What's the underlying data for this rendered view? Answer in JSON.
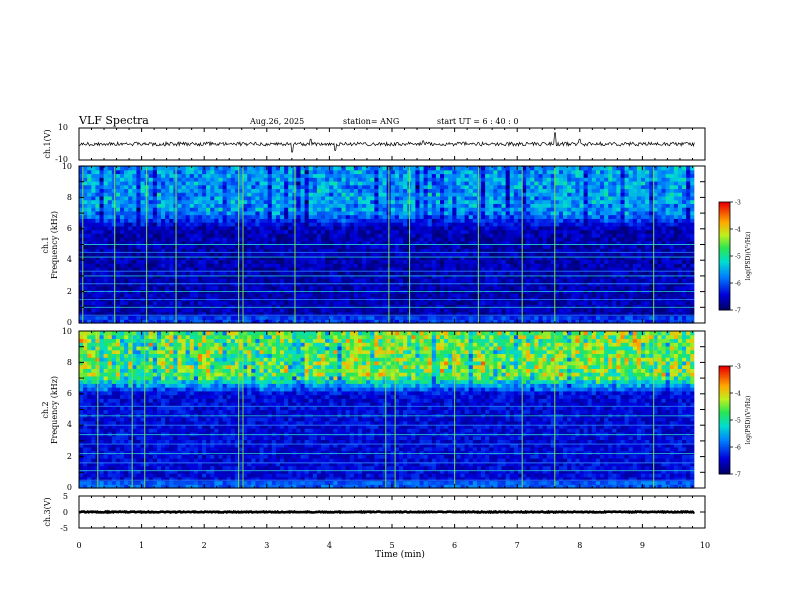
{
  "header": {
    "title": "VLF Spectra",
    "date": "Aug.26, 2025",
    "station": "station= ANG",
    "start": "start  UT =   6 : 40 : 0"
  },
  "chart_data": [
    {
      "type": "line",
      "name": "ch1-waveform",
      "ylabel": "ch.1(V)",
      "ylim": [
        -10,
        10
      ],
      "yticks": [
        "10",
        "-10"
      ],
      "baseline_v": 0,
      "noise_amplitude_v": 1.2,
      "spikes": [
        {
          "t": 3.4,
          "v": -5
        },
        {
          "t": 3.7,
          "v": 3
        },
        {
          "t": 4.1,
          "v": -4
        },
        {
          "t": 5.5,
          "v": 2
        },
        {
          "t": 7.6,
          "v": 7
        },
        {
          "t": 8.0,
          "v": 3
        }
      ]
    },
    {
      "type": "heatmap",
      "name": "ch1-spectrogram",
      "ylabel_top": "ch.1",
      "ylabel": "Frequency (kHz)",
      "ylim": [
        0,
        10
      ],
      "yticks": [
        "0",
        "2",
        "4",
        "6",
        "8",
        "10"
      ],
      "colorbar": {
        "label": "log(PSD)(V²/Hz)",
        "range": [
          -7,
          -3
        ],
        "ticks": [
          "-3",
          "-4",
          "-5",
          "-6",
          "-7"
        ]
      },
      "background_level": -6.6,
      "upper_band_khz": [
        6,
        10
      ],
      "upper_band_level": -5.3,
      "lines_khz": [
        0.5,
        1.0,
        1.5,
        2.0,
        2.5,
        3.0,
        3.3,
        4.2,
        4.5,
        5.0
      ],
      "bright_times_min": [
        0.06,
        0.57,
        1.08,
        1.55,
        2.55,
        2.62,
        3.45,
        4.95,
        5.28,
        6.38,
        7.08,
        7.6,
        9.18
      ]
    },
    {
      "type": "heatmap",
      "name": "ch2-spectrogram",
      "ylabel_top": "ch.2",
      "ylabel": "Frequency (kHz)",
      "ylim": [
        0,
        10
      ],
      "yticks": [
        "0",
        "2",
        "4",
        "6",
        "8",
        "10"
      ],
      "colorbar": {
        "label": "log(PSD)(V²/Hz)",
        "range": [
          -7,
          -3
        ],
        "ticks": [
          "-3",
          "-4",
          "-5",
          "-6",
          "-7"
        ]
      },
      "background_level": -6.4,
      "upper_band_khz": [
        6,
        10
      ],
      "upper_band_level": -4.0,
      "lines_khz": [
        0.5,
        1.1,
        1.6,
        2.2,
        2.8,
        3.4,
        4.0,
        4.6,
        5.2
      ],
      "bright_times_min": [
        0.3,
        0.85,
        1.05,
        2.55,
        2.62,
        4.9,
        5.05,
        6.0,
        7.08,
        7.6,
        9.18
      ]
    },
    {
      "type": "line",
      "name": "ch3-waveform",
      "ylabel": "ch.3(V)",
      "ylim": [
        -5,
        5
      ],
      "yticks": [
        "5",
        "0",
        "-5"
      ],
      "baseline_v": 0,
      "noise_amplitude_v": 0.15
    }
  ],
  "xaxis": {
    "label": "Time (min)",
    "range": [
      0,
      10
    ],
    "ticks": [
      "0",
      "1",
      "2",
      "3",
      "4",
      "5",
      "6",
      "7",
      "8",
      "9",
      "10"
    ],
    "data_end_min": 9.83
  },
  "colors": {
    "axis": "#000000",
    "background": "#ffffff"
  }
}
